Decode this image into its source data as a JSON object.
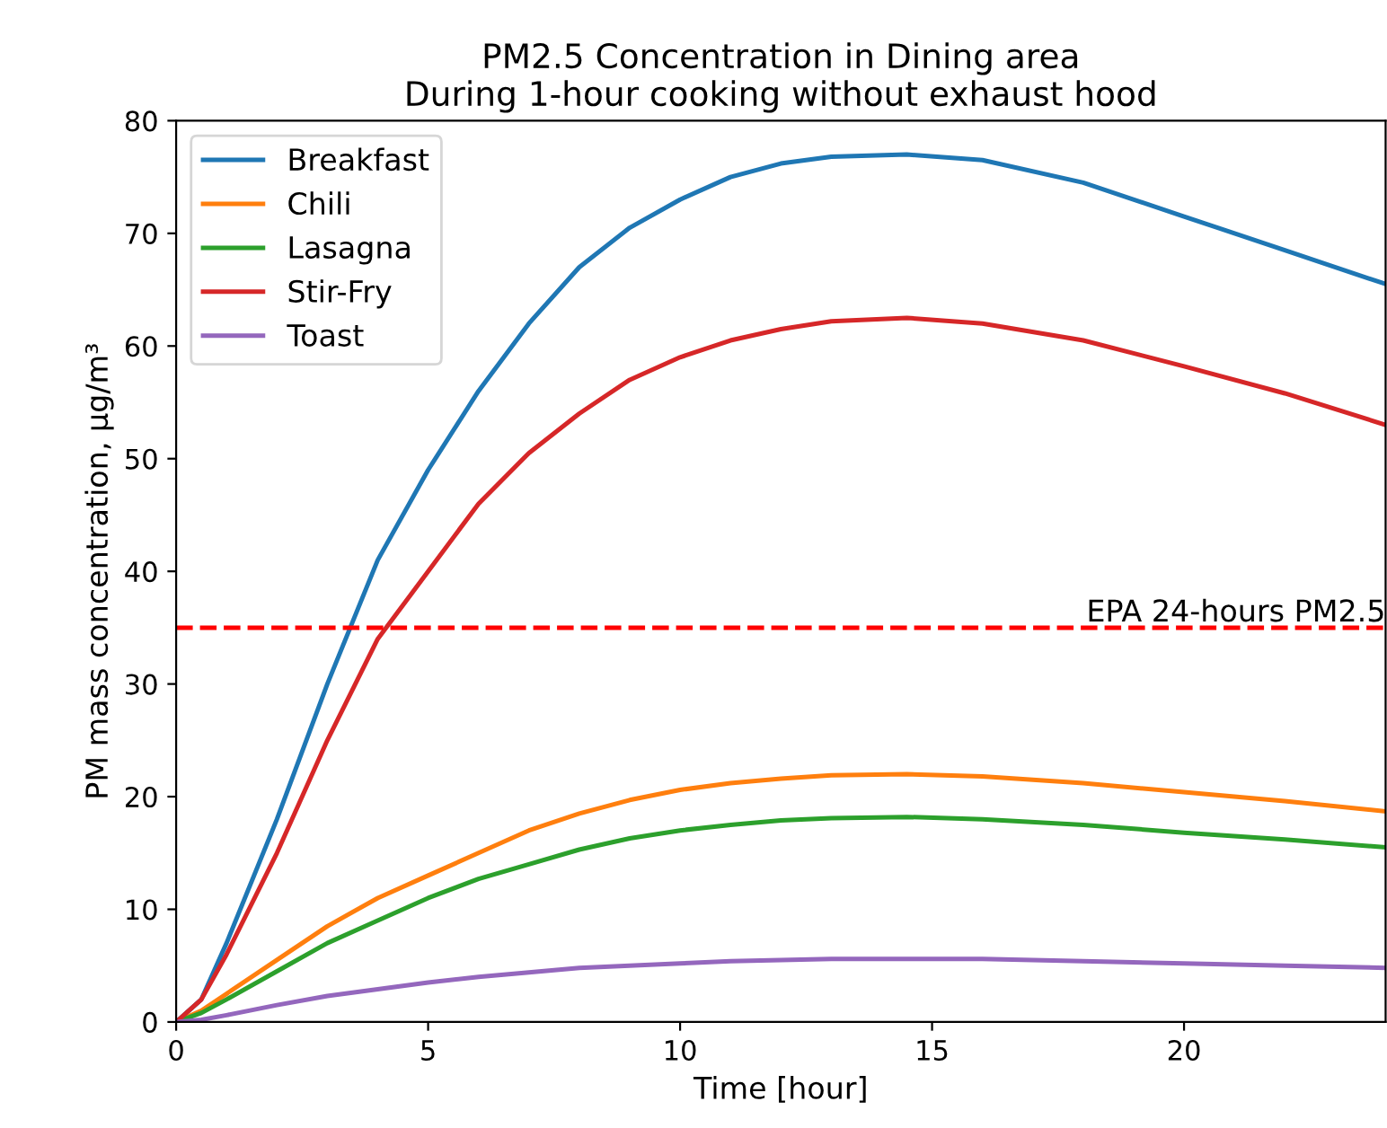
{
  "chart_data": {
    "type": "line",
    "title": "PM2.5 Concentration in Dining area\nDuring 1-hour cooking without exhaust hood",
    "xlabel": "Time [hour]",
    "ylabel": "PM mass concentration, μg/m³",
    "xlim": [
      0,
      24
    ],
    "ylim": [
      0,
      80
    ],
    "xticks": [
      0,
      5,
      10,
      15,
      20
    ],
    "yticks": [
      0,
      10,
      20,
      30,
      40,
      50,
      60,
      70,
      80
    ],
    "grid": false,
    "legend": "top left",
    "line_style": "solid",
    "x": [
      0,
      0.5,
      1,
      2,
      3,
      4,
      5,
      6,
      7,
      8,
      9,
      10,
      11,
      12,
      13,
      14.5,
      16,
      18,
      20,
      22,
      24
    ],
    "series": [
      {
        "name": "Breakfast",
        "color": "#1f77b4",
        "values": [
          0,
          2,
          7,
          18,
          30,
          41,
          49,
          56,
          62,
          67,
          70.5,
          73,
          75,
          76.2,
          76.8,
          77,
          76.5,
          74.5,
          71.5,
          68.5,
          65.5
        ]
      },
      {
        "name": "Chili",
        "color": "#ff7f0e",
        "values": [
          0,
          1,
          2.5,
          5.5,
          8.5,
          11,
          13,
          15,
          17,
          18.5,
          19.7,
          20.6,
          21.2,
          21.6,
          21.9,
          22,
          21.8,
          21.2,
          20.4,
          19.6,
          18.7
        ]
      },
      {
        "name": "Lasagna",
        "color": "#2ca02c",
        "values": [
          0,
          0.8,
          2,
          4.5,
          7,
          9,
          11,
          12.7,
          14,
          15.3,
          16.3,
          17,
          17.5,
          17.9,
          18.1,
          18.2,
          18,
          17.5,
          16.8,
          16.2,
          15.5
        ]
      },
      {
        "name": "Stir-Fry",
        "color": "#d62728",
        "values": [
          0,
          2,
          6,
          15,
          25,
          34,
          40,
          46,
          50.5,
          54,
          57,
          59,
          60.5,
          61.5,
          62.2,
          62.5,
          62,
          60.5,
          58.2,
          55.8,
          53
        ]
      },
      {
        "name": "Toast",
        "color": "#9467bd",
        "values": [
          0,
          0.2,
          0.6,
          1.5,
          2.3,
          2.9,
          3.5,
          4,
          4.4,
          4.8,
          5,
          5.2,
          5.4,
          5.5,
          5.6,
          5.6,
          5.6,
          5.4,
          5.2,
          5,
          4.8
        ]
      }
    ],
    "ref_lines": [
      {
        "axis": "y",
        "value": 35,
        "label": "EPA 24-hours PM2.5",
        "color": "#ff0000",
        "line_style": "dashed"
      }
    ]
  }
}
